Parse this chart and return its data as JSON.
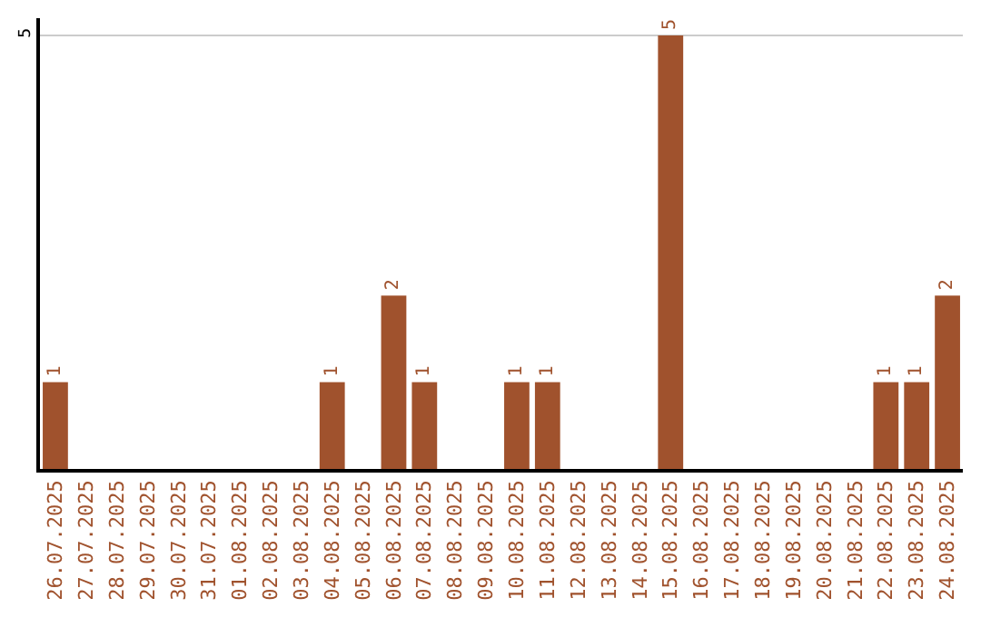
{
  "chart_data": {
    "type": "bar",
    "categories": [
      "26.07.2025",
      "27.07.2025",
      "28.07.2025",
      "29.07.2025",
      "30.07.2025",
      "31.07.2025",
      "01.08.2025",
      "02.08.2025",
      "03.08.2025",
      "04.08.2025",
      "05.08.2025",
      "06.08.2025",
      "07.08.2025",
      "08.08.2025",
      "09.08.2025",
      "10.08.2025",
      "11.08.2025",
      "12.08.2025",
      "13.08.2025",
      "14.08.2025",
      "15.08.2025",
      "16.08.2025",
      "17.08.2025",
      "18.08.2025",
      "19.08.2025",
      "20.08.2025",
      "21.08.2025",
      "22.08.2025",
      "23.08.2025",
      "24.08.2025"
    ],
    "values": [
      1,
      0,
      0,
      0,
      0,
      0,
      0,
      0,
      0,
      1,
      0,
      2,
      1,
      0,
      0,
      1,
      1,
      0,
      0,
      0,
      5,
      0,
      0,
      0,
      0,
      0,
      0,
      1,
      1,
      2
    ],
    "value_labels": [
      "1",
      null,
      null,
      null,
      null,
      null,
      null,
      null,
      null,
      "1",
      null,
      "2",
      "1",
      null,
      null,
      "1",
      "1",
      null,
      null,
      null,
      "5",
      null,
      null,
      null,
      null,
      null,
      null,
      "1",
      "1",
      "2"
    ],
    "color": "#a0522d",
    "ylim": [
      0,
      5.2
    ],
    "yticks": [
      5
    ],
    "grid": "y",
    "legend": false
  }
}
